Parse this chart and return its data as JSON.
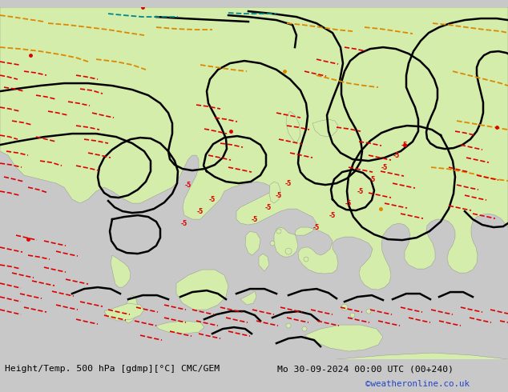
{
  "title_left": "Height/Temp. 500 hPa [gdmp][°C] CMC/GEM",
  "title_right": "Mo 30-09-2024 00:00 UTC (00+240)",
  "watermark": "©weatheronline.co.uk",
  "bg_color": "#c8c8c8",
  "land_color": "#d4edaa",
  "sea_color": "#c0c8c8",
  "border_color": "#a0a0a0",
  "contour_color": "#000000",
  "temp_neg5_color": "#dd0000",
  "temp_orange_color": "#dd8800",
  "temp_teal_color": "#008888",
  "title_fontsize": 9,
  "watermark_color": "#2244cc"
}
